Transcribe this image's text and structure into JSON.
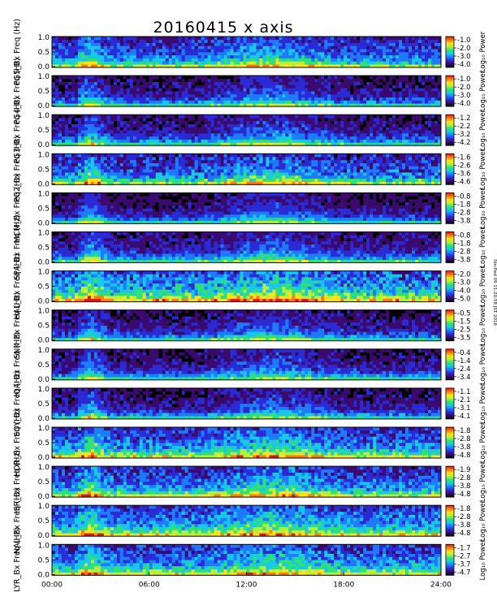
{
  "chart_data": {
    "type": "heatmap",
    "title": "20160415 x axis",
    "xlim": [
      0,
      24
    ],
    "x_tick_labels": [
      "00:00",
      "06:00",
      "12:00",
      "18:00",
      "24:00"
    ],
    "y_tick_labels": [
      "0.0",
      "0.5",
      "1.0"
    ],
    "colorbar_label": "Log₁₀ Power",
    "side_note": "Stn:Fed 09 11:20:58 JST 2016",
    "colormap_stops": [
      "#000000",
      "#3a0a6e",
      "#2b2bd6",
      "#1e7bff",
      "#19c8e6",
      "#2ee07a",
      "#b4f03c",
      "#ffe21a",
      "#ff7a10",
      "#e01414"
    ],
    "panels": [
      {
        "station": "PG5",
        "ylabel": "PG5_Bx Freq (Hz)",
        "colorbar_ticks": [
          "-1.0",
          "-2.0",
          "-3.0",
          "-4.0"
        ],
        "base_level": 0.3,
        "noise": 0.12
      },
      {
        "station": "PG4",
        "ylabel": "PG4_Bx Freq (Hz)",
        "colorbar_ticks": [
          "-1.0",
          "-2.0",
          "-3.0",
          "-4.0"
        ],
        "base_level": 0.14,
        "noise": 0.1
      },
      {
        "station": "PG3",
        "ylabel": "PG3_Bx Freq (Hz)",
        "colorbar_ticks": [
          "-1.2",
          "-2.2",
          "-3.2",
          "-4.2"
        ],
        "base_level": 0.16,
        "noise": 0.1
      },
      {
        "station": "PG2",
        "ylabel": "PG2_Bx Freq (Hz)",
        "colorbar_ticks": [
          "-1.6",
          "-2.6",
          "-3.6",
          "-4.6"
        ],
        "base_level": 0.3,
        "noise": 0.14
      },
      {
        "station": "MCM",
        "ylabel": "MCM_Bx Freq (Hz)",
        "colorbar_ticks": [
          "-0.8",
          "-1.8",
          "-2.8",
          "-3.8"
        ],
        "base_level": 0.12,
        "noise": 0.08
      },
      {
        "station": "SPA",
        "ylabel": "SPA_Bx Freq (Hz)",
        "colorbar_ticks": [
          "-0.8",
          "-1.8",
          "-2.8",
          "-3.8"
        ],
        "base_level": 0.18,
        "noise": 0.1
      },
      {
        "station": "HAL",
        "ylabel": "HAL_Bx Freq (Hz)",
        "colorbar_ticks": [
          "-2.0",
          "-3.0",
          "-4.0",
          "-5.0"
        ],
        "base_level": 0.46,
        "noise": 0.16
      },
      {
        "station": "SNK",
        "ylabel": "SNK_Bx Freq (Hz)",
        "colorbar_ticks": [
          "-0.5",
          "-1.5",
          "-2.5",
          "-3.5"
        ],
        "base_level": 0.14,
        "noise": 0.1
      },
      {
        "station": "IQA",
        "ylabel": "IQA_Bx Freq (Hz)",
        "colorbar_ticks": [
          "-0.4",
          "-1.4",
          "-2.4",
          "-3.4"
        ],
        "base_level": 0.15,
        "noise": 0.1
      },
      {
        "station": "SOY",
        "ylabel": "SOY_Bx Freq (Hz)",
        "colorbar_ticks": [
          "-1.1",
          "-2.1",
          "-3.1",
          "-4.1"
        ],
        "base_level": 0.14,
        "noise": 0.1
      },
      {
        "station": "HOR",
        "ylabel": "HOR_Bx Freq (Hz)",
        "colorbar_ticks": [
          "-1.8",
          "-2.8",
          "-3.8",
          "-4.8"
        ],
        "base_level": 0.36,
        "noise": 0.14
      },
      {
        "station": "ISR",
        "ylabel": "ISR_Bx Freq (Hz)",
        "colorbar_ticks": [
          "-1.9",
          "-2.8",
          "-3.8",
          "-4.8"
        ],
        "base_level": 0.34,
        "noise": 0.14
      },
      {
        "station": "NAL",
        "ylabel": "NAL_Bx Freq (Hz)",
        "colorbar_ticks": [
          "-1.8",
          "-2.8",
          "-3.8",
          "-4.8"
        ],
        "base_level": 0.4,
        "noise": 0.14
      },
      {
        "station": "LYR",
        "ylabel": "LYR_Bx Freq (Hz)",
        "colorbar_ticks": [
          "-1.7",
          "-2.7",
          "-3.7",
          "-4.7"
        ],
        "base_level": 0.38,
        "noise": 0.14
      }
    ]
  }
}
